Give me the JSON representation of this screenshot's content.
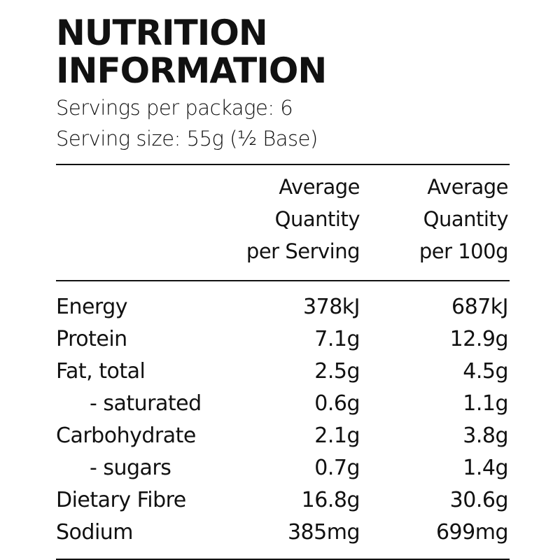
{
  "title": {
    "line1": "NUTRITION",
    "line2": "INFORMATION"
  },
  "servings_per_package": "Servings per package: 6",
  "serving_size": "Serving size: 55g (½ Base)",
  "columns": {
    "per_serving": [
      "Average",
      "Quantity",
      "per Serving"
    ],
    "per_100g": [
      "Average",
      "Quantity",
      "per 100g"
    ]
  },
  "rows": [
    {
      "label": "Energy",
      "per_serving": "378kJ",
      "per_100g": "687kJ",
      "indent": false
    },
    {
      "label": "Protein",
      "per_serving": "7.1g",
      "per_100g": "12.9g",
      "indent": false
    },
    {
      "label": "Fat, total",
      "per_serving": "2.5g",
      "per_100g": "4.5g",
      "indent": false
    },
    {
      "label": "- saturated",
      "per_serving": "0.6g",
      "per_100g": "1.1g",
      "indent": true
    },
    {
      "label": "Carbohydrate",
      "per_serving": "2.1g",
      "per_100g": "3.8g",
      "indent": false
    },
    {
      "label": "- sugars",
      "per_serving": "0.7g",
      "per_100g": "1.4g",
      "indent": true
    },
    {
      "label": "Dietary Fibre",
      "per_serving": "16.8g",
      "per_100g": "30.6g",
      "indent": false
    },
    {
      "label": "Sodium",
      "per_serving": "385mg",
      "per_100g": "699mg",
      "indent": false
    }
  ]
}
